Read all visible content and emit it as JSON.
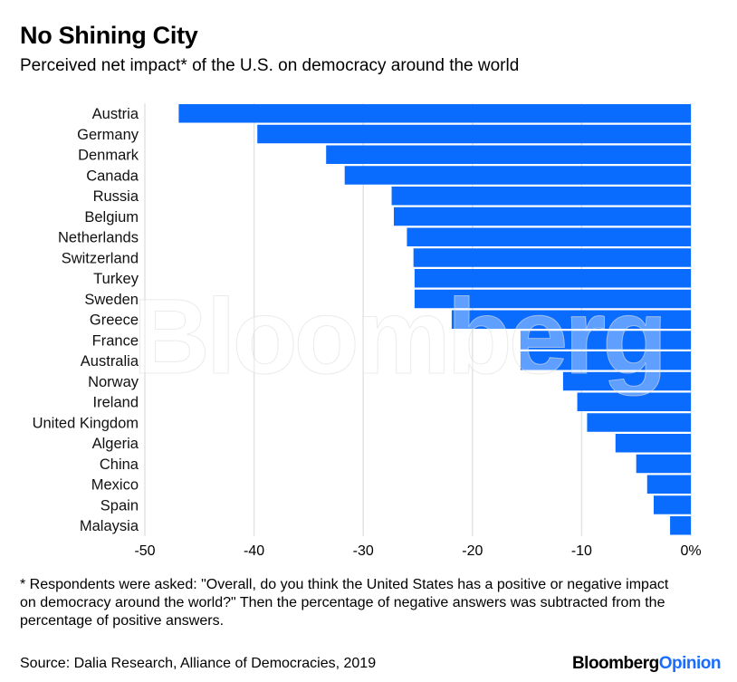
{
  "title": "No Shining City",
  "subtitle": "Perceived net impact* of the U.S. on democracy around the world",
  "footnote": "* Respondents were asked: \"Overall, do you think the United States has a positive or negative impact on democracy around the world?\" Then the percentage of negative answers was subtracted from the percentage of positive answers.",
  "source": "Source: Dalia Research, Alliance of Democracies, 2019",
  "logo": {
    "main": "Bloomberg",
    "suffix": "Opinion"
  },
  "watermark": "Bloomberg",
  "colors": {
    "bar": "#0a6cff",
    "grid": "#e3e3e3"
  },
  "chart_data": {
    "type": "bar",
    "orientation": "horizontal",
    "title": "No Shining City",
    "subtitle": "Perceived net impact* of the U.S. on democracy around the world",
    "xlabel": "",
    "ylabel": "",
    "xlim": [
      -50,
      0
    ],
    "grid": true,
    "x_ticks": [
      -50,
      -40,
      -30,
      -20,
      -10,
      0
    ],
    "x_tick_labels": [
      "-50",
      "-40",
      "-30",
      "-20",
      "-10",
      "0%"
    ],
    "categories": [
      "Austria",
      "Germany",
      "Denmark",
      "Canada",
      "Russia",
      "Belgium",
      "Netherlands",
      "Switzerland",
      "Turkey",
      "Sweden",
      "Greece",
      "France",
      "Australia",
      "Norway",
      "Ireland",
      "United Kingdom",
      "Algeria",
      "China",
      "Mexico",
      "Spain",
      "Malaysia"
    ],
    "values": [
      -46.9,
      -39.7,
      -33.4,
      -31.7,
      -27.4,
      -27.2,
      -26.0,
      -25.4,
      -25.3,
      -25.3,
      -21.9,
      -15.6,
      -15.6,
      -11.7,
      -10.4,
      -9.5,
      -6.9,
      -5.0,
      -4.0,
      -3.4,
      -1.9
    ]
  }
}
